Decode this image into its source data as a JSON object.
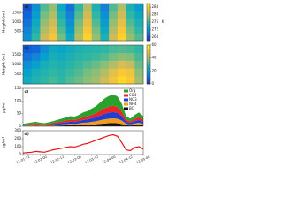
{
  "chart_data": [
    {
      "type": "heatmap",
      "label": "a)",
      "ylabel": "Height (m)",
      "ylim": [
        0,
        2000
      ],
      "yticks": [
        500,
        1000,
        1500
      ],
      "colors": [
        "#352a87",
        "#0f5cdd",
        "#1481d6",
        "#06a4ca",
        "#2eb7a4",
        "#87bf77",
        "#d1bb59",
        "#fec832",
        "#f9fb0e"
      ],
      "vlim": [
        266,
        286
      ],
      "cticks": [
        268,
        272,
        276,
        280,
        284
      ],
      "colorbar_label": "K",
      "values": [
        [
          272,
          276,
          281,
          283,
          278,
          274,
          280,
          284,
          279,
          275,
          281,
          284,
          279,
          277
        ],
        [
          271,
          275,
          280,
          282,
          277,
          273,
          279,
          283,
          278,
          274,
          280,
          283,
          278,
          276
        ],
        [
          270,
          274,
          279,
          281,
          276,
          272,
          278,
          282,
          277,
          273,
          279,
          282,
          277,
          275
        ],
        [
          269,
          273,
          278,
          280,
          275,
          271,
          277,
          281,
          276,
          272,
          278,
          281,
          276,
          274
        ],
        [
          268,
          272,
          277,
          279,
          274,
          270,
          276,
          280,
          275,
          271,
          277,
          280,
          275,
          273
        ]
      ]
    },
    {
      "type": "heatmap",
      "label": "b)",
      "ylabel": "Height (m)",
      "ylim": [
        0,
        2000
      ],
      "yticks": [
        500,
        1000,
        1500
      ],
      "colors": [
        "#352a87",
        "#0f5cdd",
        "#1481d6",
        "#06a4ca",
        "#2eb7a4",
        "#87bf77",
        "#d1bb59",
        "#fec832",
        "#f9fb0e"
      ],
      "vlim": [
        0,
        60
      ],
      "cticks": [
        0,
        20,
        40,
        60
      ],
      "values": [
        [
          25,
          28,
          30,
          32,
          30,
          33,
          35,
          38,
          40,
          45,
          50,
          55,
          52,
          40
        ],
        [
          22,
          26,
          28,
          30,
          29,
          31,
          33,
          36,
          38,
          42,
          48,
          52,
          50,
          38
        ],
        [
          18,
          22,
          26,
          28,
          27,
          29,
          31,
          33,
          35,
          38,
          42,
          46,
          44,
          35
        ],
        [
          12,
          16,
          22,
          26,
          25,
          27,
          29,
          30,
          31,
          33,
          36,
          38,
          37,
          32
        ],
        [
          8,
          10,
          18,
          24,
          23,
          25,
          27,
          28,
          29,
          30,
          32,
          33,
          32,
          30
        ]
      ]
    },
    {
      "type": "stacked-area",
      "label": "c)",
      "ylabel": "μg/m³",
      "ylim": [
        0,
        150
      ],
      "yticks": [
        0,
        50,
        100,
        150
      ],
      "series": [
        {
          "name": "Org",
          "color": "#2ca02c",
          "values": [
            3.5,
            4.2,
            5.3,
            6.3,
            4.9,
            4.2,
            5.6,
            7,
            8.8,
            10.5,
            12.3,
            14,
            13.3,
            15.8,
            19.3,
            21,
            24.5,
            28,
            33.3,
            38.5,
            42,
            43.8,
            41.3,
            31.5,
            14,
            10.5,
            15.8,
            19.3,
            14
          ]
        },
        {
          "name": "SO4",
          "color": "#e8262a",
          "values": [
            2,
            2.4,
            3,
            3.6,
            2.8,
            2.4,
            3.2,
            4,
            5,
            6,
            7,
            8,
            7.6,
            9,
            11,
            12,
            14,
            16,
            19,
            22,
            24,
            25,
            23.6,
            18,
            8,
            6,
            9,
            11,
            8
          ]
        },
        {
          "name": "NO3",
          "color": "#1f3fd0",
          "values": [
            2,
            2.4,
            3,
            3.6,
            2.8,
            2.4,
            3.2,
            4,
            5,
            6,
            7,
            8,
            7.6,
            9,
            11,
            12,
            14,
            16,
            19,
            22,
            24,
            25,
            23.6,
            18,
            8,
            6,
            9,
            11,
            8
          ]
        },
        {
          "name": "NH4",
          "color": "#f29b1d",
          "values": [
            1.5,
            1.8,
            2.3,
            2.7,
            2.1,
            1.8,
            2.4,
            3,
            3.8,
            4.5,
            5.3,
            6,
            5.7,
            6.8,
            8.3,
            9,
            10.5,
            12,
            14.3,
            16.5,
            18,
            18.8,
            17.7,
            13.5,
            6,
            4.5,
            6.8,
            8.3,
            6
          ]
        },
        {
          "name": "BC",
          "color": "#111111",
          "values": [
            1,
            1.2,
            1.5,
            1.8,
            1.4,
            1.2,
            1.6,
            2,
            2.5,
            3,
            3.5,
            4,
            3.8,
            4.5,
            5.5,
            6,
            7,
            8,
            9.5,
            11,
            12,
            12.5,
            11.8,
            9,
            4,
            3,
            4.5,
            5.5,
            4
          ]
        }
      ]
    },
    {
      "type": "line",
      "label": "d)",
      "ylabel": "μg/m³",
      "ylim": [
        0,
        300
      ],
      "yticks": [
        0,
        100,
        200,
        300
      ],
      "color": "#e8141a",
      "categories": [
        "12-01-12",
        null,
        null,
        null,
        "12-02-00",
        null,
        null,
        null,
        "12-02-12",
        null,
        null,
        null,
        "12-03-00",
        null,
        null,
        null,
        "12-03-12",
        null,
        null,
        null,
        "12-04-00",
        null,
        null,
        null,
        "12-04-12",
        null,
        null,
        null,
        "12-05-00"
      ],
      "values": [
        20,
        25,
        30,
        40,
        35,
        30,
        45,
        60,
        70,
        80,
        90,
        100,
        95,
        110,
        130,
        140,
        160,
        180,
        200,
        220,
        240,
        250,
        230,
        150,
        60,
        50,
        90,
        100,
        70
      ]
    }
  ]
}
